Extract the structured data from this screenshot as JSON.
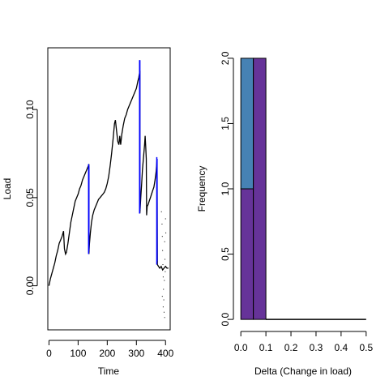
{
  "chart_data": [
    {
      "type": "line",
      "title": "",
      "xlabel": "Time",
      "ylabel": "Load",
      "xlim": [
        -4,
        416
      ],
      "ylim": [
        -0.025,
        0.135
      ],
      "x_ticks": [
        {
          "value": 0,
          "label": "0"
        },
        {
          "value": 100,
          "label": "100"
        },
        {
          "value": 200,
          "label": "200"
        },
        {
          "value": 300,
          "label": "300"
        },
        {
          "value": 400,
          "label": "400"
        }
      ],
      "y_ticks": [
        {
          "value": 0.0,
          "label": "0.00"
        },
        {
          "value": 0.05,
          "label": "0.05"
        },
        {
          "value": 0.1,
          "label": "0.10"
        }
      ],
      "series": [
        {
          "color": "#000000",
          "points": [
            [
              0,
              0.0
            ],
            [
              5,
              0.004
            ],
            [
              10,
              0.007
            ],
            [
              15,
              0.01
            ],
            [
              20,
              0.013
            ],
            [
              25,
              0.017
            ],
            [
              30,
              0.02
            ],
            [
              35,
              0.024
            ],
            [
              40,
              0.026
            ],
            [
              45,
              0.028
            ],
            [
              50,
              0.031
            ],
            [
              53,
              0.021
            ],
            [
              57,
              0.018
            ],
            [
              60,
              0.019
            ],
            [
              65,
              0.024
            ],
            [
              70,
              0.03
            ],
            [
              75,
              0.036
            ],
            [
              80,
              0.04
            ],
            [
              85,
              0.044
            ],
            [
              90,
              0.048
            ],
            [
              95,
              0.05
            ],
            [
              100,
              0.052
            ],
            [
              105,
              0.055
            ],
            [
              110,
              0.057
            ],
            [
              115,
              0.06
            ],
            [
              120,
              0.062
            ],
            [
              125,
              0.064
            ],
            [
              130,
              0.066
            ],
            [
              135,
              0.068
            ],
            [
              137,
              0.069
            ],
            [
              137,
              0.018
            ],
            [
              139,
              0.024
            ],
            [
              142,
              0.03
            ],
            [
              146,
              0.036
            ],
            [
              150,
              0.04
            ],
            [
              155,
              0.043
            ],
            [
              160,
              0.045
            ],
            [
              165,
              0.047
            ],
            [
              170,
              0.049
            ],
            [
              175,
              0.05
            ],
            [
              180,
              0.051
            ],
            [
              185,
              0.052
            ],
            [
              190,
              0.053
            ],
            [
              195,
              0.055
            ],
            [
              200,
              0.058
            ],
            [
              205,
              0.062
            ],
            [
              210,
              0.068
            ],
            [
              215,
              0.075
            ],
            [
              220,
              0.083
            ],
            [
              225,
              0.092
            ],
            [
              228,
              0.094
            ],
            [
              232,
              0.088
            ],
            [
              236,
              0.082
            ],
            [
              240,
              0.08
            ],
            [
              243,
              0.085
            ],
            [
              246,
              0.08
            ],
            [
              250,
              0.086
            ],
            [
              255,
              0.091
            ],
            [
              260,
              0.095
            ],
            [
              265,
              0.097
            ],
            [
              270,
              0.1
            ],
            [
              275,
              0.102
            ],
            [
              280,
              0.104
            ],
            [
              285,
              0.106
            ],
            [
              290,
              0.108
            ],
            [
              295,
              0.11
            ],
            [
              300,
              0.112
            ],
            [
              305,
              0.116
            ],
            [
              308,
              0.118
            ],
            [
              312,
              0.122
            ],
            [
              312,
              0.041
            ],
            [
              315,
              0.05
            ],
            [
              318,
              0.058
            ],
            [
              321,
              0.066
            ],
            [
              325,
              0.074
            ],
            [
              328,
              0.08
            ],
            [
              330,
              0.085
            ],
            [
              332,
              0.079
            ],
            [
              334,
              0.072
            ],
            [
              335,
              0.04
            ],
            [
              337,
              0.045
            ],
            [
              340,
              0.046
            ],
            [
              344,
              0.048
            ],
            [
              348,
              0.05
            ],
            [
              352,
              0.052
            ],
            [
              356,
              0.054
            ],
            [
              360,
              0.056
            ],
            [
              364,
              0.06
            ],
            [
              368,
              0.065
            ],
            [
              371,
              0.072
            ],
            [
              372,
              0.012
            ],
            [
              376,
              0.011
            ],
            [
              380,
              0.01
            ],
            [
              385,
              0.011
            ],
            [
              390,
              0.009
            ],
            [
              395,
              0.01
            ],
            [
              400,
              0.011
            ],
            [
              405,
              0.01
            ],
            [
              410,
              0.01
            ]
          ]
        },
        {
          "color": "#0000ff",
          "segments": [
            [
              [
                136,
                0.069
              ],
              [
                136,
                0.018
              ]
            ],
            [
              [
                137,
                0.068
              ],
              [
                137,
                0.02
              ]
            ],
            [
              [
                311,
                0.128
              ],
              [
                311,
                0.041
              ]
            ],
            [
              [
                312,
                0.128
              ],
              [
                312,
                0.043
              ]
            ],
            [
              [
                370,
                0.073
              ],
              [
                370,
                0.012
              ]
            ],
            [
              [
                371,
                0.072
              ],
              [
                371,
                0.014
              ]
            ]
          ]
        },
        {
          "color": "#000000",
          "points_only": [
            [
              386,
              0.042
            ],
            [
              388,
              0.035
            ],
            [
              389,
              0.028
            ],
            [
              390,
              0.02
            ],
            [
              391,
              0.012
            ],
            [
              392,
              0.005
            ],
            [
              393,
              -0.002
            ],
            [
              394,
              -0.008
            ],
            [
              395,
              -0.015
            ],
            [
              396,
              0.003
            ],
            [
              397,
              0.025
            ],
            [
              398,
              0.015
            ],
            [
              399,
              0.008
            ],
            [
              400,
              0.038
            ],
            [
              401,
              0.03
            ],
            [
              389,
              -0.006
            ],
            [
              392,
              -0.012
            ],
            [
              397,
              -0.018
            ]
          ]
        }
      ]
    },
    {
      "type": "bar",
      "title": "",
      "xlabel": "Delta (Change in load)",
      "ylabel": "Frequency",
      "xlim": [
        -0.02,
        0.52
      ],
      "ylim": [
        -0.08,
        2.08
      ],
      "x_ticks": [
        {
          "value": 0.0,
          "label": "0.0"
        },
        {
          "value": 0.1,
          "label": "0.1"
        },
        {
          "value": 0.2,
          "label": "0.2"
        },
        {
          "value": 0.3,
          "label": "0.3"
        },
        {
          "value": 0.4,
          "label": "0.4"
        },
        {
          "value": 0.5,
          "label": "0.5"
        }
      ],
      "y_ticks": [
        {
          "value": 0.0,
          "label": "0.0"
        },
        {
          "value": 0.5,
          "label": "0.5"
        },
        {
          "value": 1.0,
          "label": "1.0"
        },
        {
          "value": 1.5,
          "label": "1.5"
        },
        {
          "value": 2.0,
          "label": "2.0"
        }
      ],
      "bins": [
        {
          "x0": 0.0,
          "x1": 0.05,
          "stack": [
            {
              "value": 1,
              "color": "#663399"
            },
            {
              "value": 1,
              "color": "#4682b4"
            }
          ]
        },
        {
          "x0": 0.05,
          "x1": 0.1,
          "stack": [
            {
              "value": 2,
              "color": "#663399"
            }
          ]
        },
        {
          "x0": 0.1,
          "x1": 0.5,
          "stack": [
            {
              "value": 0,
              "color": "#663399"
            }
          ]
        }
      ]
    }
  ]
}
